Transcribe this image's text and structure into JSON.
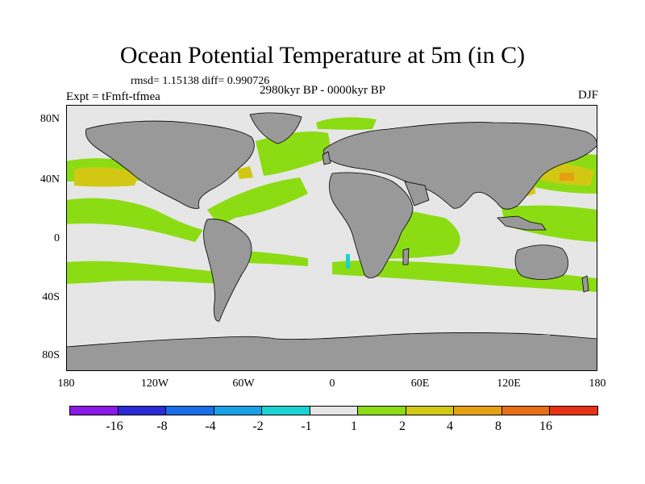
{
  "title": "Ocean Potential Temperature at 5m (in C)",
  "stats": "rmsd= 1.15138 diff= 0.990726",
  "experiment": "Expt = tFmft-tfmea",
  "period": "2980kyr BP - 0000kyr BP",
  "season": "DJF",
  "lat_ticks": [
    "80N",
    "40N",
    "0",
    "40S",
    "80S"
  ],
  "lon_ticks": [
    "180",
    "120W",
    "60W",
    "0",
    "60E",
    "120E",
    "180"
  ],
  "colorbar": {
    "labels": [
      "-16",
      "-8",
      "-4",
      "-2",
      "-1",
      "1",
      "2",
      "4",
      "8",
      "16"
    ],
    "colors": [
      "#8c1ae6",
      "#2a2ad8",
      "#1a6ee6",
      "#1aa0e6",
      "#1ad2d2",
      "#e6e6e6",
      "#8cdc14",
      "#d2c814",
      "#e6a014",
      "#e66e14",
      "#e63214"
    ]
  },
  "colors": {
    "land": "#999999",
    "ocean_neutral": "#e6e6e6",
    "warm_green": "#8cdc14",
    "warm_yellow": "#d2c814",
    "warm_orange": "#e6a014",
    "cool_cyan": "#1ad2d2"
  }
}
